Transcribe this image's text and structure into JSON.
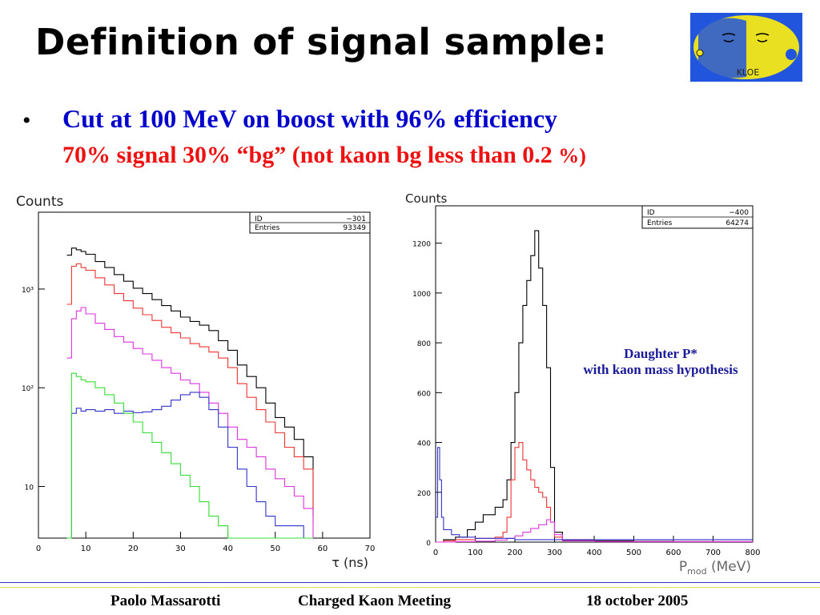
{
  "slide": {
    "title": "Definition of signal sample:",
    "bullet": "•",
    "line1": "Cut at 100 MeV on boost   with 96% efficiency",
    "line2_main": "70% signal 30% “bg” (not kaon bg less than 0.2 ",
    "line2_pct": "%",
    "line2_close": ")",
    "logo_text": "KLOE",
    "footer": {
      "author": "Paolo Massarotti",
      "meeting": "Charged Kaon Meeting",
      "date": "18 october 2005"
    },
    "colors": {
      "title": "#000000",
      "line1": "#0000cc",
      "line2": "#ee1111",
      "annotation": "#1a1a99",
      "logo_bg": "#2255dd",
      "logo_face": "#e8e020"
    }
  },
  "chart_data": [
    {
      "type": "line",
      "ylabel": "Counts",
      "xlabel": "τ (ns)",
      "ylog": true,
      "xlim": [
        0,
        70
      ],
      "ylim": [
        3,
        6000
      ],
      "xticks": [
        0,
        10,
        20,
        30,
        40,
        50,
        60,
        70
      ],
      "yticks": [
        {
          "v": 10,
          "label": "10"
        },
        {
          "v": 100,
          "label": "10²"
        },
        {
          "v": 1000,
          "label": "10³"
        }
      ],
      "stats": {
        "id_label": "ID",
        "id": "−301",
        "entries_label": "Entries",
        "entries": "93349"
      },
      "series": [
        {
          "color": "#000000",
          "x": [
            6,
            7,
            8,
            9,
            10,
            12,
            14,
            16,
            18,
            20,
            22,
            24,
            26,
            28,
            30,
            32,
            34,
            36,
            38,
            40,
            42,
            44,
            46,
            48,
            50,
            52,
            54,
            56,
            58
          ],
          "y": [
            2200,
            2600,
            2500,
            2400,
            2250,
            1900,
            1650,
            1400,
            1200,
            1020,
            900,
            780,
            680,
            600,
            520,
            470,
            430,
            380,
            300,
            240,
            170,
            130,
            100,
            70,
            50,
            40,
            30,
            20,
            5
          ]
        },
        {
          "color": "#ee3333",
          "x": [
            6,
            7,
            8,
            9,
            10,
            12,
            14,
            16,
            18,
            20,
            22,
            24,
            26,
            28,
            30,
            32,
            34,
            36,
            38,
            40,
            42,
            44,
            46,
            48,
            50,
            52,
            54,
            56,
            58
          ],
          "y": [
            700,
            1700,
            1800,
            1650,
            1550,
            1300,
            1100,
            900,
            760,
            640,
            550,
            480,
            410,
            360,
            320,
            280,
            260,
            230,
            200,
            160,
            110,
            80,
            60,
            45,
            35,
            25,
            20,
            15,
            4
          ]
        },
        {
          "color": "#dd33dd",
          "x": [
            6,
            7,
            8,
            9,
            10,
            12,
            14,
            16,
            18,
            20,
            22,
            24,
            26,
            28,
            30,
            32,
            34,
            36,
            38,
            40,
            42,
            44,
            46,
            48,
            50,
            52,
            54,
            56,
            58
          ],
          "y": [
            200,
            500,
            600,
            650,
            560,
            450,
            390,
            330,
            290,
            250,
            220,
            190,
            160,
            140,
            120,
            110,
            90,
            70,
            55,
            40,
            30,
            25,
            20,
            15,
            12,
            10,
            8,
            6,
            3
          ]
        },
        {
          "color": "#3333cc",
          "x": [
            6,
            7,
            8,
            9,
            10,
            12,
            14,
            16,
            18,
            20,
            22,
            24,
            26,
            28,
            30,
            32,
            34,
            36,
            38,
            40,
            42,
            44,
            46,
            48,
            50,
            52,
            54,
            56,
            58
          ],
          "y": [
            3,
            55,
            62,
            58,
            60,
            58,
            60,
            55,
            58,
            56,
            57,
            60,
            65,
            75,
            85,
            90,
            80,
            60,
            40,
            25,
            15,
            10,
            7,
            5,
            4,
            4,
            4,
            3,
            3
          ]
        },
        {
          "color": "#33dd33",
          "x": [
            6,
            7,
            8,
            9,
            10,
            12,
            14,
            16,
            18,
            20,
            22,
            24,
            26,
            28,
            30,
            32,
            34,
            36,
            38,
            40,
            42,
            44,
            46,
            48,
            50,
            52,
            54,
            56,
            58
          ],
          "y": [
            3,
            140,
            130,
            120,
            115,
            100,
            85,
            70,
            55,
            45,
            35,
            28,
            22,
            17,
            13,
            10,
            7,
            5,
            4,
            3,
            3,
            3,
            3,
            3,
            3,
            3,
            3,
            3,
            3
          ]
        }
      ]
    },
    {
      "type": "line",
      "ylabel": "Counts",
      "xlabel_main": "P",
      "xlabel_sub": "mod",
      "xlabel_unit": "(MeV)",
      "xlim": [
        0,
        800
      ],
      "ylim": [
        0,
        1350
      ],
      "xticks": [
        0,
        100,
        200,
        300,
        400,
        500,
        600,
        700,
        800
      ],
      "yticks": [
        0,
        200,
        400,
        600,
        800,
        1000,
        1200
      ],
      "stats": {
        "id_label": "ID",
        "id": "−400",
        "entries_label": "Entries",
        "entries": "64274"
      },
      "annotation": [
        "Daughter P*",
        "with kaon mass hypothesis"
      ],
      "series": [
        {
          "color": "#000000",
          "x": [
            0,
            20,
            50,
            80,
            100,
            120,
            150,
            170,
            180,
            190,
            200,
            210,
            220,
            230,
            240,
            250,
            260,
            270,
            280,
            290,
            300,
            320,
            400,
            500,
            600,
            700,
            800
          ],
          "y": [
            0,
            10,
            20,
            50,
            80,
            110,
            140,
            170,
            250,
            400,
            600,
            800,
            950,
            1050,
            1150,
            1250,
            1100,
            950,
            700,
            300,
            40,
            8,
            5,
            3,
            2,
            1,
            0
          ]
        },
        {
          "color": "#ee3333",
          "x": [
            0,
            20,
            50,
            100,
            150,
            170,
            180,
            190,
            200,
            210,
            220,
            230,
            240,
            250,
            260,
            270,
            280,
            290,
            300,
            320,
            400,
            800
          ],
          "y": [
            0,
            5,
            10,
            15,
            20,
            40,
            100,
            250,
            380,
            400,
            330,
            290,
            250,
            220,
            200,
            180,
            140,
            80,
            20,
            5,
            2,
            0
          ]
        },
        {
          "color": "#dd33dd",
          "x": [
            0,
            50,
            100,
            150,
            180,
            200,
            220,
            240,
            260,
            280,
            290,
            300,
            320,
            400,
            800
          ],
          "y": [
            0,
            2,
            4,
            8,
            15,
            25,
            40,
            55,
            70,
            90,
            80,
            30,
            5,
            2,
            0
          ]
        },
        {
          "color": "#3333cc",
          "x": [
            0,
            5,
            10,
            15,
            20,
            40,
            60,
            100,
            200,
            300,
            400,
            500,
            600,
            700,
            800
          ],
          "y": [
            100,
            380,
            250,
            100,
            50,
            30,
            20,
            15,
            10,
            10,
            10,
            10,
            10,
            10,
            10
          ]
        }
      ]
    }
  ]
}
